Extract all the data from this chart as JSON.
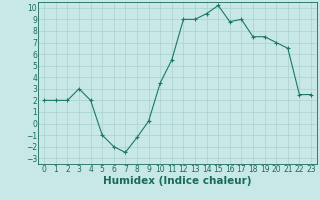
{
  "x": [
    0,
    1,
    2,
    3,
    4,
    5,
    6,
    7,
    8,
    9,
    10,
    11,
    12,
    13,
    14,
    15,
    16,
    17,
    18,
    19,
    20,
    21,
    22,
    23
  ],
  "y": [
    2,
    2,
    2,
    3,
    2,
    -1,
    -2,
    -2.5,
    -1.2,
    0.2,
    3.5,
    5.5,
    9,
    9,
    9.5,
    10.2,
    8.8,
    9,
    7.5,
    7.5,
    7,
    6.5,
    2.5,
    2.5
  ],
  "line_color": "#1a7a5e",
  "marker_color": "#1a7a5e",
  "bg_color": "#c8e8e8",
  "grid_color": "#aad0d0",
  "xlabel": "Humidex (Indice chaleur)",
  "xlim": [
    -0.5,
    23.5
  ],
  "ylim": [
    -3.5,
    10.5
  ],
  "yticks": [
    -3,
    -2,
    -1,
    0,
    1,
    2,
    3,
    4,
    5,
    6,
    7,
    8,
    9,
    10
  ],
  "xticks": [
    0,
    1,
    2,
    3,
    4,
    5,
    6,
    7,
    8,
    9,
    10,
    11,
    12,
    13,
    14,
    15,
    16,
    17,
    18,
    19,
    20,
    21,
    22,
    23
  ],
  "font_color": "#1a6a5a",
  "tick_fontsize": 5.5,
  "label_fontsize": 7.5
}
